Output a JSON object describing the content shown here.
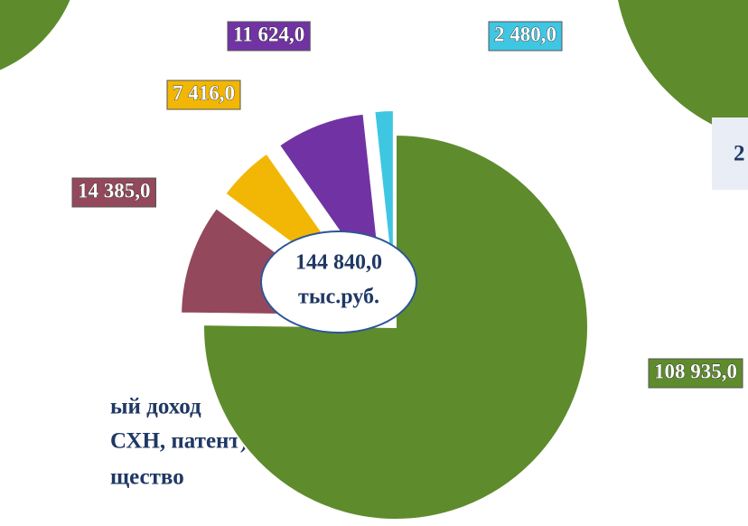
{
  "chart_data": {
    "type": "pie",
    "categories": [
      null,
      null,
      null,
      null,
      null
    ],
    "values": [
      108935.0,
      14385.0,
      7416.0,
      11624.0,
      2480.0
    ],
    "value_labels": [
      "108 935,0",
      "14 385,0",
      "7 416,0",
      "11 624,0",
      "2 480,0"
    ],
    "colors": [
      "#5e8b2c",
      "#94485b",
      "#f2b705",
      "#7133a3",
      "#3fc6e2"
    ],
    "center_label": "144 840,0",
    "center_unit": "тыс.руб.",
    "annotations": [
      "ый доход",
      "СХН, патент)",
      "щество",
      "2"
    ]
  }
}
